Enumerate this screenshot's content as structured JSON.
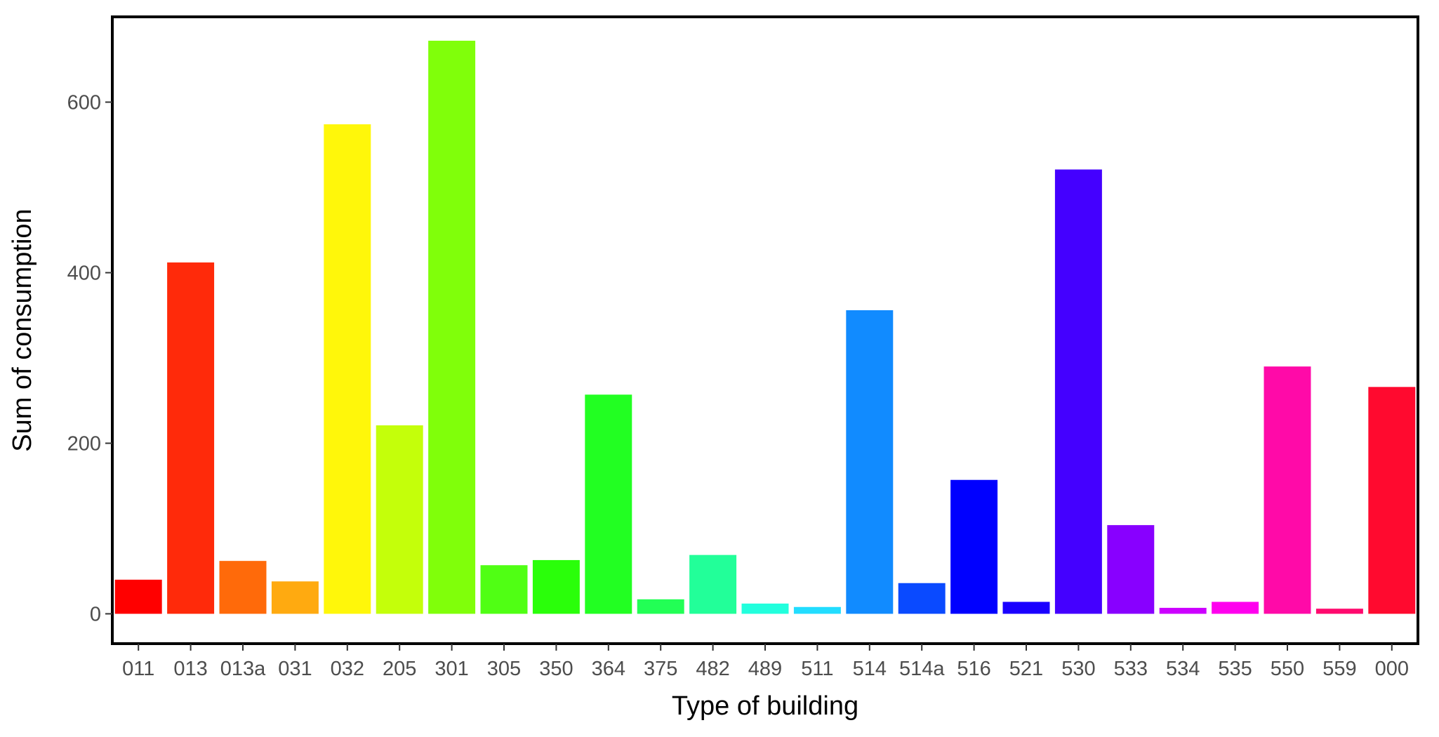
{
  "chart_data": {
    "type": "bar",
    "xlabel": "Type of building",
    "ylabel": "Sum of consumption",
    "ylim": [
      -35,
      700
    ],
    "yticks": [
      0,
      200,
      400,
      600
    ],
    "grid": false,
    "legend": "none",
    "categories": [
      "011",
      "013",
      "013a",
      "031",
      "032",
      "205",
      "301",
      "305",
      "350",
      "364",
      "375",
      "482",
      "489",
      "511",
      "514",
      "514a",
      "516",
      "521",
      "530",
      "533",
      "534",
      "535",
      "550",
      "559",
      "000"
    ],
    "values": [
      40,
      412,
      62,
      38,
      574,
      221,
      672,
      57,
      63,
      257,
      17,
      69,
      12,
      8,
      356,
      36,
      157,
      14,
      521,
      104,
      7,
      14,
      290,
      6,
      266
    ],
    "colors": [
      "#FF0000",
      "#FF2A0A",
      "#FF6A0A",
      "#FFAA10",
      "#FFF70A",
      "#C4FF0A",
      "#80FF0A",
      "#50FF14",
      "#2AFF0A",
      "#22FF22",
      "#22FF55",
      "#22FF99",
      "#22FFDD",
      "#22DDFF",
      "#118BFF",
      "#0A4AFF",
      "#0000FF",
      "#1A00FF",
      "#4400FF",
      "#8800FF",
      "#CC00FF",
      "#FF00EE",
      "#FF0AA8",
      "#FF0A6E",
      "#FF0A2F"
    ]
  }
}
